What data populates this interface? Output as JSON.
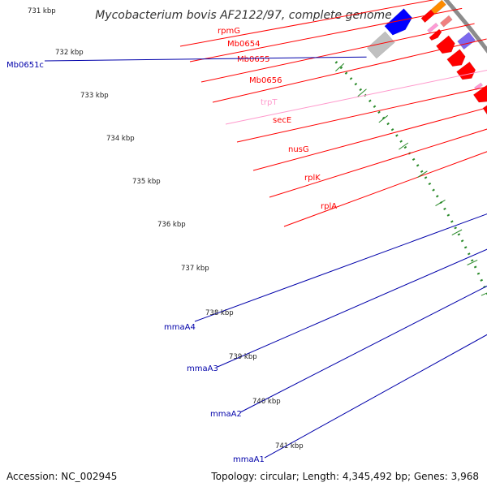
{
  "title": "Mycobacterium bovis AF2122/97, complete genome",
  "accession_text": "Accession: NC_002945",
  "summary_text": "Topology: circular; Length: 4,345,492 bp; Genes: 3,968",
  "colors": {
    "backbone": "#8c8c8c",
    "tick": "#2a8a2a",
    "red": "#ff0000",
    "orange": "#ff8c00",
    "salmon": "#f08080",
    "pink": "#ff9ad6",
    "green": "#9acd32",
    "olive": "#6b8e23",
    "blue": "#0000ff",
    "slate": "#7b68ee",
    "grey": "#c0c0c0",
    "label_red": "#ff0000",
    "label_pink": "#ff99cc",
    "label_blue": "#0000aa"
  },
  "kbp_labels": [
    "731 kbp",
    "732 kbp",
    "733 kbp",
    "734 kbp",
    "735 kbp",
    "736 kbp",
    "737 kbp",
    "738 kbp",
    "739 kbp",
    "740 kbp",
    "741 kbp"
  ],
  "genes_right": [
    {
      "name": "rpmG",
      "color": "label_red"
    },
    {
      "name": "Mb0654",
      "color": "label_red"
    },
    {
      "name": "Mb0655",
      "color": "label_red"
    },
    {
      "name": "Mb0656",
      "color": "label_red"
    },
    {
      "name": "trpT",
      "color": "label_pink"
    },
    {
      "name": "secE",
      "color": "label_red"
    },
    {
      "name": "nusG",
      "color": "label_red"
    },
    {
      "name": "rplK",
      "color": "label_red"
    },
    {
      "name": "rplA",
      "color": "label_red"
    }
  ],
  "genes_left": [
    {
      "name": "Mb0651c",
      "color": "label_blue"
    },
    {
      "name": "mmaA4",
      "color": "label_blue"
    },
    {
      "name": "mmaA3",
      "color": "label_blue"
    },
    {
      "name": "mmaA2",
      "color": "label_blue"
    },
    {
      "name": "mmaA1",
      "color": "label_blue"
    }
  ]
}
